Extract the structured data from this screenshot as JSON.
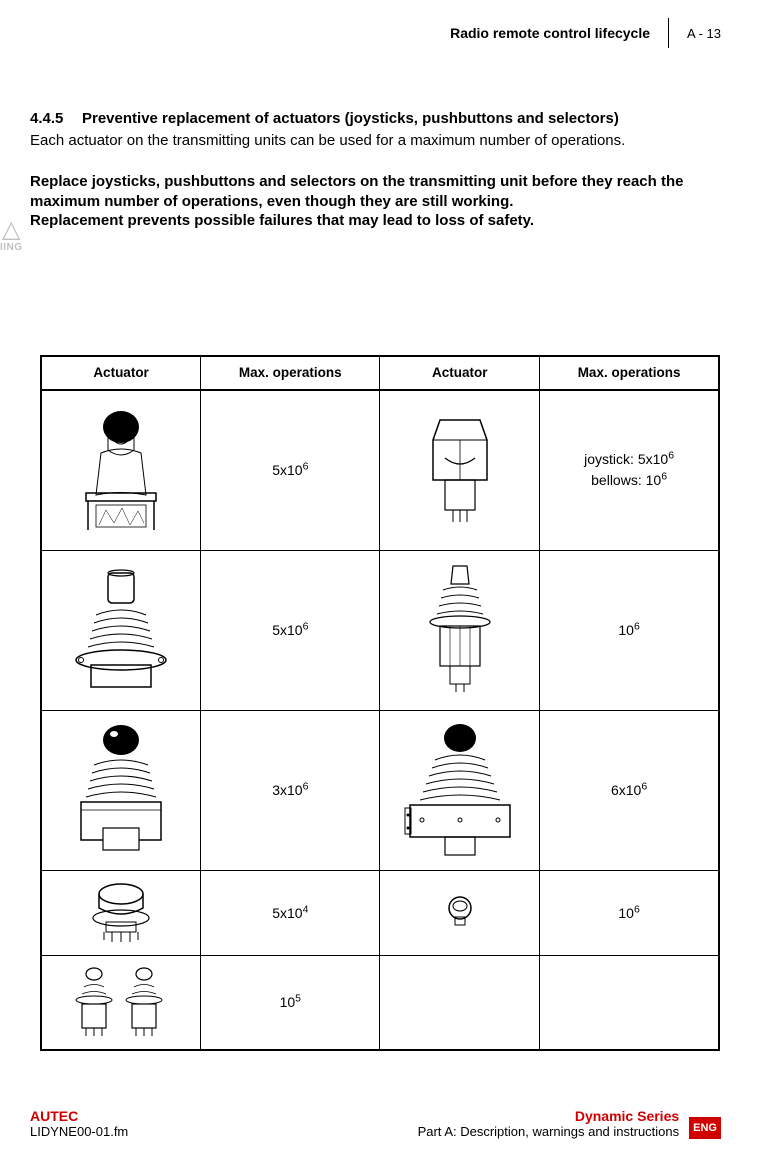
{
  "header": {
    "section_title": "Radio remote control lifecycle",
    "page_label": "A - 13"
  },
  "section": {
    "number": "4.4.5",
    "title": "Preventive replacement of actuators (joysticks, pushbuttons and selectors)",
    "intro": "Each actuator on the transmitting units can be used for a maximum number of operations.",
    "warning_1": "Replace joysticks, pushbuttons and selectors on the transmitting unit before they reach the maximum number of operations, even though they are still working.",
    "warning_2": "Replacement prevents possible failures that may lead to loss of safety."
  },
  "warn_side_label": "IING",
  "table": {
    "headers": {
      "actuator": "Actuator",
      "max_ops": "Max. operations"
    },
    "rows": [
      {
        "left_icon": "joystick-with-frame",
        "left_val_html": "5x10<sup>6</sup>",
        "right_icon": "joystick-with-cover",
        "right_val_html": "joystick: 5x10<sup>6</sup><br>bellows: 10<sup>6</sup>"
      },
      {
        "left_icon": "cylindrical-knob-joystick",
        "left_val_html": "5x10<sup>6</sup>",
        "right_icon": "skeletal-joystick",
        "right_val_html": "10<sup>6</sup>"
      },
      {
        "left_icon": "ball-joystick-box",
        "left_val_html": "3x10<sup>6</sup>",
        "right_icon": "ball-joystick-large-base",
        "right_val_html": "6x10<sup>6</sup>"
      },
      {
        "left_icon": "emergency-stop",
        "left_val_html": "5x10<sup>4</sup>",
        "right_icon": "small-pushbutton",
        "right_val_html": "10<sup>6</sup>"
      },
      {
        "left_icon": "selector-pair",
        "left_val_html": "10<sup>5</sup>",
        "right_icon": "",
        "right_val_html": ""
      }
    ]
  },
  "footer": {
    "brand": "AUTEC",
    "doc_id": "LIDYNE00-01.fm",
    "series": "Dynamic Series",
    "part": "Part A: Description, warnings and instructions",
    "lang_badge": "ENG"
  },
  "colors": {
    "accent_red": "#d00000",
    "text": "#000000",
    "side_gray": "#c0c0c0"
  }
}
